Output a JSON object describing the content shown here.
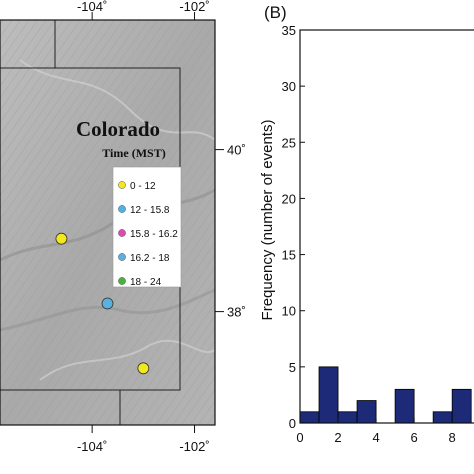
{
  "panel_b_label": "(B)",
  "chart_data": [
    {
      "type": "map",
      "region_label": "Colorado",
      "legend_title": "Time (MST)",
      "legend": [
        {
          "label": "0 - 12",
          "color": "#f2e81e"
        },
        {
          "label": "12 - 15.8",
          "color": "#4db3e6"
        },
        {
          "label": "15.8 - 16.2",
          "color": "#e04ab0"
        },
        {
          "label": "16.2 - 18",
          "color": "#5cb0e0"
        },
        {
          "label": "18 - 24",
          "color": "#44b33a"
        }
      ],
      "longitude_ticks": [
        {
          "value": -104,
          "label": "-104˚"
        },
        {
          "value": -102,
          "label": "-102˚"
        }
      ],
      "latitude_ticks": [
        {
          "value": 40,
          "label": "40˚"
        },
        {
          "value": 38,
          "label": "38˚"
        }
      ],
      "lon_range": [
        -105.8,
        -101.6
      ],
      "lat_range": [
        36.6,
        41.6
      ],
      "events": [
        {
          "lon": -104.6,
          "lat": 38.9,
          "color": "#f2e81e"
        },
        {
          "lon": -103.7,
          "lat": 38.1,
          "color": "#5cb0e0"
        },
        {
          "lon": -103.0,
          "lat": 37.3,
          "color": "#f2e81e"
        }
      ]
    },
    {
      "type": "bar",
      "ylabel": "Frequency (number of events)",
      "xlabel": "",
      "xlim": [
        0,
        9.2
      ],
      "ylim": [
        0,
        35
      ],
      "xticks": [
        0,
        2,
        4,
        6,
        8
      ],
      "yticks": [
        0,
        5,
        10,
        15,
        20,
        25,
        30,
        35
      ],
      "bin_width": 1,
      "bins": [
        {
          "x": 0,
          "value": 1
        },
        {
          "x": 1,
          "value": 5
        },
        {
          "x": 2,
          "value": 1
        },
        {
          "x": 3,
          "value": 2
        },
        {
          "x": 4,
          "value": 0
        },
        {
          "x": 5,
          "value": 3
        },
        {
          "x": 6,
          "value": 0
        },
        {
          "x": 7,
          "value": 1
        },
        {
          "x": 8,
          "value": 3
        }
      ],
      "bar_color": "#1c2a78"
    }
  ]
}
